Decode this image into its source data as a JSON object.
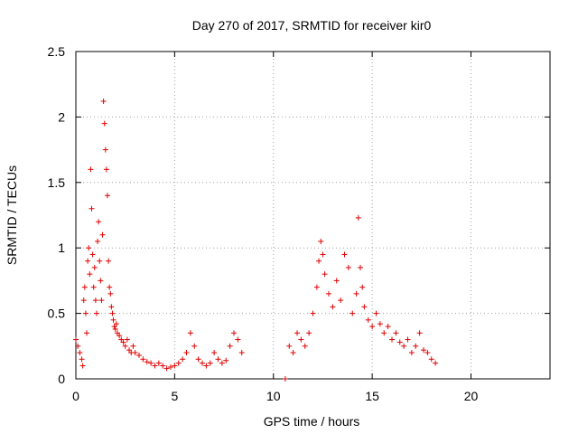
{
  "chart_data": {
    "type": "scatter",
    "title": "Day 270 of 2017, SRMTID for receiver kir0",
    "xlabel": "GPS time / hours",
    "ylabel": "SRMTID / TECUs",
    "xlim": [
      0,
      24
    ],
    "ylim": [
      0,
      2.5
    ],
    "xticks": [
      0,
      5,
      10,
      15,
      20
    ],
    "yticks": [
      0,
      0.5,
      1,
      1.5,
      2,
      2.5
    ],
    "xtick_labels": [
      "0",
      "5",
      "10",
      "15",
      "20"
    ],
    "ytick_labels": [
      "0",
      "0.5",
      "1",
      "1.5",
      "2",
      "2.5"
    ],
    "grid": true,
    "marker": "+",
    "color": "#e00000",
    "series": [
      {
        "name": "kir0",
        "x": [
          0.0,
          0.1,
          0.2,
          0.3,
          0.35,
          0.4,
          0.45,
          0.5,
          0.55,
          0.6,
          0.65,
          0.7,
          0.75,
          0.8,
          0.85,
          0.9,
          0.95,
          1.0,
          1.05,
          1.1,
          1.15,
          1.2,
          1.25,
          1.3,
          1.35,
          1.4,
          1.45,
          1.5,
          1.55,
          1.6,
          1.65,
          1.7,
          1.75,
          1.8,
          1.85,
          1.9,
          1.95,
          2.0,
          2.05,
          2.1,
          2.2,
          2.3,
          2.4,
          2.5,
          2.6,
          2.7,
          2.8,
          2.9,
          3.0,
          3.2,
          3.4,
          3.6,
          3.8,
          4.0,
          4.2,
          4.4,
          4.6,
          4.8,
          5.0,
          5.2,
          5.4,
          5.6,
          5.8,
          6.0,
          6.2,
          6.4,
          6.6,
          6.8,
          7.0,
          7.2,
          7.4,
          7.6,
          7.8,
          8.0,
          8.2,
          8.4,
          10.6,
          10.8,
          11.0,
          11.2,
          11.4,
          11.6,
          11.8,
          12.0,
          12.2,
          12.3,
          12.4,
          12.5,
          12.6,
          12.8,
          13.0,
          13.2,
          13.4,
          13.6,
          13.8,
          14.0,
          14.2,
          14.3,
          14.4,
          14.5,
          14.6,
          14.8,
          15.0,
          15.2,
          15.4,
          15.6,
          15.8,
          16.0,
          16.2,
          16.4,
          16.6,
          16.8,
          17.0,
          17.2,
          17.4,
          17.6,
          17.8,
          18.0,
          18.2
        ],
        "y": [
          0.3,
          0.25,
          0.2,
          0.15,
          0.1,
          0.6,
          0.7,
          0.5,
          0.35,
          0.9,
          1.0,
          0.8,
          1.6,
          1.3,
          0.95,
          0.7,
          0.85,
          0.6,
          0.5,
          1.05,
          1.2,
          0.9,
          0.75,
          0.6,
          1.1,
          2.12,
          1.95,
          1.75,
          1.6,
          1.4,
          0.9,
          0.7,
          0.65,
          0.55,
          0.5,
          0.45,
          0.4,
          0.38,
          0.42,
          0.35,
          0.33,
          0.3,
          0.28,
          0.25,
          0.3,
          0.22,
          0.2,
          0.25,
          0.2,
          0.18,
          0.15,
          0.13,
          0.12,
          0.1,
          0.12,
          0.1,
          0.08,
          0.09,
          0.1,
          0.12,
          0.15,
          0.2,
          0.35,
          0.25,
          0.15,
          0.12,
          0.1,
          0.12,
          0.2,
          0.15,
          0.12,
          0.14,
          0.25,
          0.35,
          0.3,
          0.2,
          0.0,
          0.25,
          0.2,
          0.35,
          0.3,
          0.25,
          0.35,
          0.5,
          0.7,
          0.9,
          1.05,
          0.95,
          0.8,
          0.65,
          0.55,
          0.75,
          0.6,
          0.95,
          0.85,
          0.5,
          0.65,
          1.23,
          0.85,
          0.7,
          0.55,
          0.45,
          0.4,
          0.5,
          0.42,
          0.35,
          0.4,
          0.3,
          0.35,
          0.28,
          0.25,
          0.3,
          0.2,
          0.25,
          0.35,
          0.22,
          0.2,
          0.15,
          0.12
        ]
      }
    ]
  }
}
